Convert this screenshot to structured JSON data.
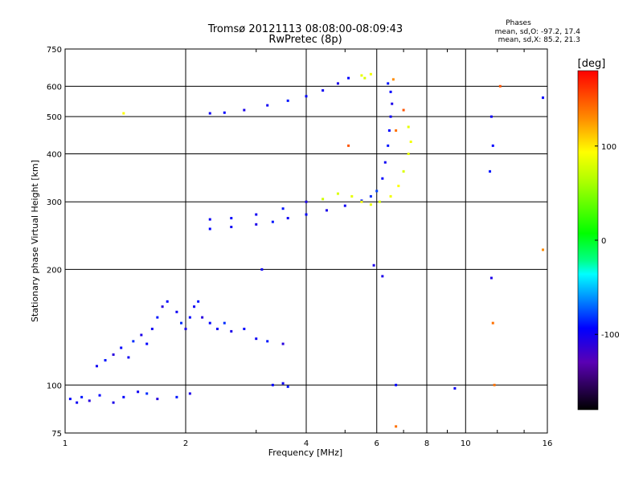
{
  "chart_data": {
    "type": "scatter",
    "title": "Tromsø 20121113 08:08:00-08:09:43",
    "subtitle": "RwPretec (8p)",
    "xlabel": "Frequency [MHz]",
    "ylabel": "Stationary phase Virtual Height [km]",
    "x_scale": "log",
    "y_scale": "log",
    "xlim": [
      1,
      16
    ],
    "ylim": [
      75,
      750
    ],
    "x_ticks": [
      1,
      2,
      4,
      6,
      8,
      10,
      16
    ],
    "y_ticks": [
      75,
      100,
      200,
      300,
      400,
      500,
      600,
      750
    ],
    "grid": true,
    "phase_stats": {
      "heading": "Phases",
      "line_o": "mean, sd,O: -97.2, 17.4",
      "line_x": "mean, sd,X:  85.2, 21.3"
    },
    "colorbar": {
      "label": "[deg]",
      "ticks": [
        100,
        0,
        -100
      ],
      "range": [
        -180,
        180
      ]
    },
    "series": [
      {
        "points": [
          [
            1.03,
            92,
            -95
          ],
          [
            1.07,
            90,
            -100
          ],
          [
            1.1,
            93,
            -90
          ],
          [
            1.15,
            91,
            -110
          ],
          [
            1.22,
            94,
            -95
          ],
          [
            1.32,
            90,
            -105
          ],
          [
            1.4,
            93,
            -95
          ],
          [
            1.52,
            96,
            -100
          ],
          [
            1.6,
            95,
            -85
          ],
          [
            1.7,
            92,
            -110
          ],
          [
            1.9,
            93,
            -90
          ],
          [
            2.05,
            95,
            -105
          ],
          [
            1.2,
            112,
            -100
          ],
          [
            1.26,
            116,
            -90
          ],
          [
            1.32,
            120,
            -110
          ],
          [
            1.38,
            125,
            -95
          ],
          [
            1.44,
            118,
            -100
          ],
          [
            1.48,
            130,
            -85
          ],
          [
            1.55,
            135,
            -105
          ],
          [
            1.6,
            128,
            -95
          ],
          [
            1.65,
            140,
            -100
          ],
          [
            1.7,
            150,
            -90
          ],
          [
            1.75,
            160,
            -110
          ],
          [
            1.8,
            165,
            -95
          ],
          [
            1.9,
            155,
            -100
          ],
          [
            1.95,
            145,
            -85
          ],
          [
            2.0,
            140,
            -105
          ],
          [
            2.05,
            150,
            -95
          ],
          [
            2.1,
            160,
            -100
          ],
          [
            2.15,
            165,
            -90
          ],
          [
            2.2,
            150,
            -110
          ],
          [
            2.3,
            145,
            -95
          ],
          [
            2.4,
            140,
            -100
          ],
          [
            2.5,
            145,
            -85
          ],
          [
            2.6,
            138,
            -105
          ],
          [
            2.8,
            140,
            -95
          ],
          [
            3.0,
            132,
            -100
          ],
          [
            3.2,
            130,
            -90
          ],
          [
            3.5,
            128,
            -110
          ],
          [
            3.3,
            100,
            -95
          ],
          [
            3.5,
            101,
            -100
          ],
          [
            3.6,
            99,
            -90
          ],
          [
            2.3,
            255,
            -95
          ],
          [
            2.6,
            258,
            -100
          ],
          [
            3.0,
            262,
            -105
          ],
          [
            3.3,
            266,
            -90
          ],
          [
            3.6,
            272,
            -100
          ],
          [
            4.0,
            278,
            -95
          ],
          [
            4.5,
            285,
            -105
          ],
          [
            5.0,
            293,
            -100
          ],
          [
            5.5,
            302,
            -90
          ],
          [
            5.8,
            310,
            -85
          ],
          [
            6.0,
            320,
            -80
          ],
          [
            6.2,
            345,
            -95
          ],
          [
            6.3,
            380,
            -100
          ],
          [
            6.4,
            420,
            -90
          ],
          [
            6.45,
            460,
            -95
          ],
          [
            6.5,
            500,
            -100
          ],
          [
            6.55,
            540,
            -105
          ],
          [
            6.5,
            580,
            -95
          ],
          [
            6.4,
            610,
            -90
          ],
          [
            2.3,
            270,
            -100
          ],
          [
            2.6,
            272,
            -95
          ],
          [
            3.0,
            278,
            -100
          ],
          [
            3.5,
            288,
            -90
          ],
          [
            4.0,
            300,
            -105
          ],
          [
            2.3,
            510,
            -100
          ],
          [
            2.5,
            512,
            -95
          ],
          [
            2.8,
            520,
            -105
          ],
          [
            3.2,
            535,
            -100
          ],
          [
            3.6,
            550,
            -90
          ],
          [
            4.0,
            565,
            -95
          ],
          [
            4.4,
            585,
            -100
          ],
          [
            4.8,
            610,
            -105
          ],
          [
            5.1,
            630,
            -95
          ],
          [
            6.2,
            192,
            -105
          ],
          [
            6.7,
            100,
            -95
          ],
          [
            9.4,
            98,
            -100
          ],
          [
            11.6,
            190,
            -105
          ],
          [
            11.7,
            420,
            -95
          ],
          [
            11.6,
            500,
            -100
          ],
          [
            11.5,
            360,
            -90
          ],
          [
            15.6,
            560,
            -95
          ],
          [
            3.1,
            200,
            -100
          ],
          [
            5.9,
            205,
            -105
          ],
          [
            4.4,
            305,
            75
          ],
          [
            4.8,
            315,
            80
          ],
          [
            5.2,
            310,
            85
          ],
          [
            5.5,
            300,
            90
          ],
          [
            5.8,
            295,
            85
          ],
          [
            6.1,
            300,
            80
          ],
          [
            6.5,
            310,
            90
          ],
          [
            6.8,
            330,
            95
          ],
          [
            7.0,
            360,
            80
          ],
          [
            7.2,
            400,
            85
          ],
          [
            7.3,
            430,
            90
          ],
          [
            7.2,
            470,
            85
          ],
          [
            5.5,
            640,
            85
          ],
          [
            5.8,
            645,
            90
          ],
          [
            5.6,
            630,
            80
          ],
          [
            6.6,
            625,
            130
          ],
          [
            6.7,
            460,
            140
          ],
          [
            7.0,
            520,
            150
          ],
          [
            12.2,
            600,
            150
          ],
          [
            11.8,
            100,
            140
          ],
          [
            11.7,
            145,
            140
          ],
          [
            15.6,
            225,
            130
          ],
          [
            6.7,
            78,
            140
          ],
          [
            5.1,
            420,
            150
          ],
          [
            1.4,
            510,
            95
          ]
        ]
      }
    ]
  }
}
